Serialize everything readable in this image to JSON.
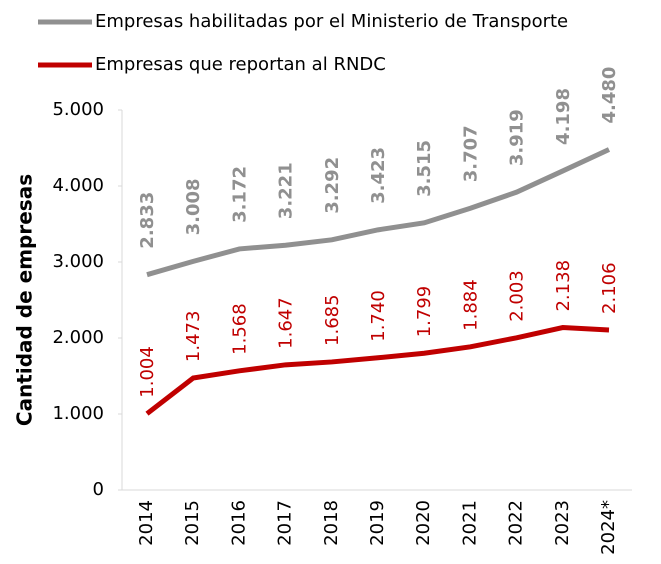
{
  "chart_data": {
    "type": "line",
    "y_label": "Cantidad de empresas",
    "categories": [
      "2014",
      "2015",
      "2016",
      "2017",
      "2018",
      "2019",
      "2020",
      "2021",
      "2022",
      "2023",
      "2024*"
    ],
    "series": [
      {
        "name": "Empresas habilitadas por el Ministerio de Transporte",
        "color": "#909090",
        "values": [
          2833,
          3008,
          3172,
          3221,
          3292,
          3423,
          3515,
          3707,
          3919,
          4198,
          4480
        ],
        "value_labels": [
          "2.833",
          "3.008",
          "3.172",
          "3.221",
          "3.292",
          "3.423",
          "3.515",
          "3.707",
          "3.919",
          "4.198",
          "4.480"
        ]
      },
      {
        "name": "Empresas que reportan al RNDC",
        "color": "#c00000",
        "values": [
          1004,
          1473,
          1568,
          1647,
          1685,
          1740,
          1799,
          1884,
          2003,
          2138,
          2106
        ],
        "value_labels": [
          "1.004",
          "1.473",
          "1.568",
          "1.647",
          "1.685",
          "1.740",
          "1.799",
          "1.884",
          "2.003",
          "2.138",
          "2.106"
        ]
      }
    ],
    "ylim": [
      0,
      5000
    ],
    "yticks": [
      0,
      {
        "value": 1000,
        "label": "1.000"
      },
      {
        "value": 2000,
        "label": "2.000"
      },
      {
        "value": 3000,
        "label": "3.000"
      },
      {
        "value": 4000,
        "label": "4.000"
      },
      {
        "value": 5000,
        "label": "5.000"
      }
    ]
  }
}
